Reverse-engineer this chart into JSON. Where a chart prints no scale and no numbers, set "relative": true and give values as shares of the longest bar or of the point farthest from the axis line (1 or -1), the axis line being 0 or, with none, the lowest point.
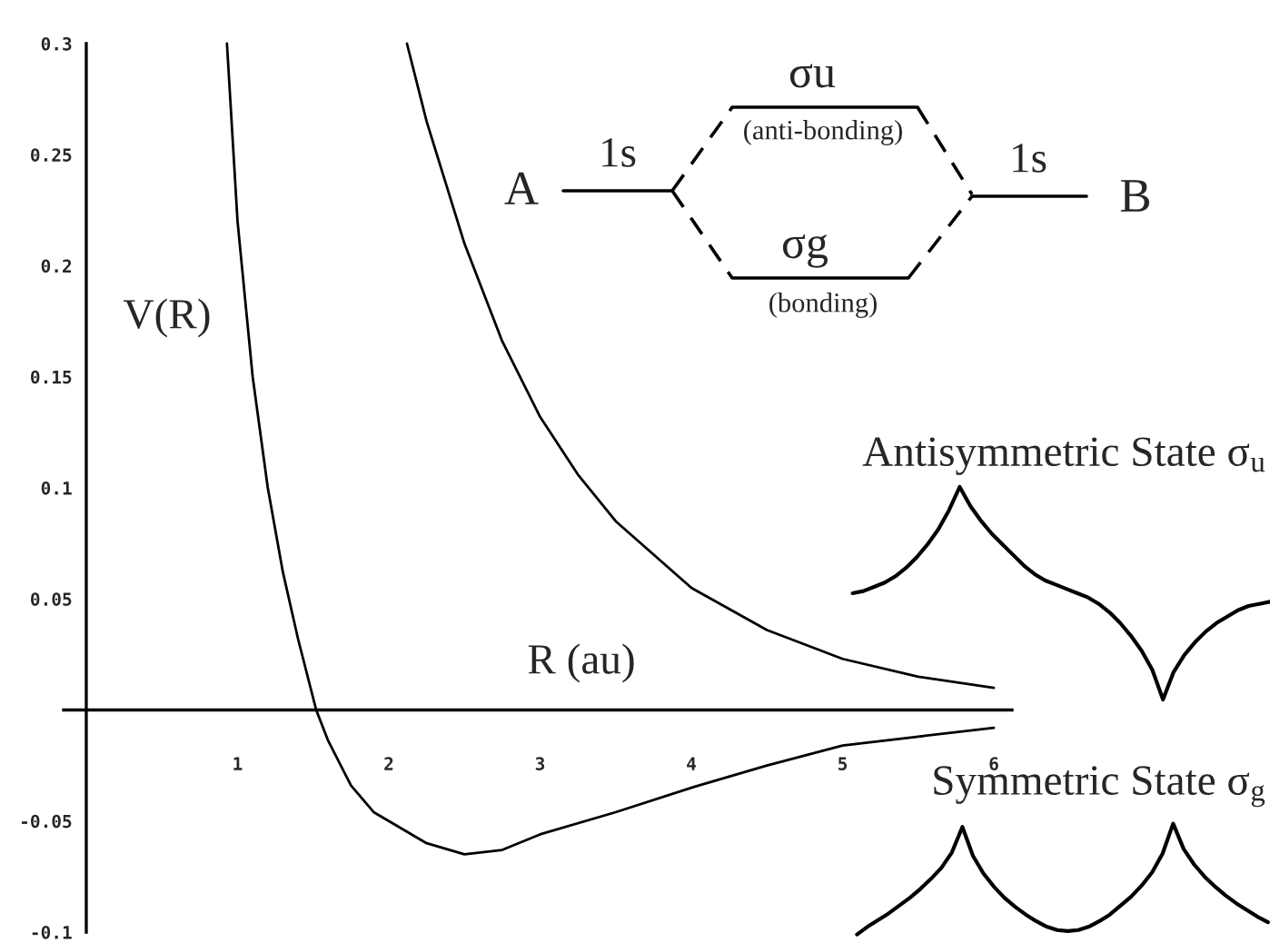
{
  "chart_data": [
    {
      "type": "line",
      "xlabel": "R (au)",
      "ylabel": "V(R)",
      "series": [
        {
          "color": "#000000",
          "x": [
            0.93,
            1.0,
            1.1,
            1.2,
            1.3,
            1.4,
            1.52,
            1.6,
            1.75,
            1.9,
            2.0,
            2.25,
            2.5,
            2.75,
            3.0,
            3.5,
            4.0,
            4.5,
            5.0,
            5.5,
            6.0
          ],
          "values": [
            0.3,
            0.22,
            0.15,
            0.1,
            0.062,
            0.032,
            0.0,
            -0.014,
            -0.034,
            -0.046,
            -0.05,
            -0.06,
            -0.065,
            -0.063,
            -0.056,
            -0.046,
            -0.035,
            -0.025,
            -0.016,
            -0.012,
            -0.008
          ]
        },
        {
          "color": "#000000",
          "x": [
            2.12,
            2.25,
            2.5,
            2.75,
            3.0,
            3.25,
            3.5,
            4.0,
            4.5,
            5.0,
            5.5,
            6.0
          ],
          "values": [
            0.3,
            0.265,
            0.21,
            0.166,
            0.132,
            0.106,
            0.085,
            0.055,
            0.036,
            0.023,
            0.015,
            0.01
          ]
        }
      ],
      "xlim": [
        -0.15,
        6.12
      ],
      "ylim": [
        -0.1,
        0.3
      ],
      "xticks": [
        1,
        2,
        3,
        4,
        5,
        6
      ],
      "yticks": [
        -0.1,
        -0.05,
        0.05,
        0.1,
        0.15,
        0.2,
        0.25,
        0.3
      ],
      "annotations": [
        "A",
        "1s",
        "σu",
        "(anti-bonding)",
        "σg",
        "(bonding)",
        "1s",
        "B"
      ]
    },
    {
      "type": "line",
      "title": "Antisymmetric State σ$_{u}$",
      "relative": true,
      "categories": [
        null,
        null,
        null,
        null,
        null,
        null,
        null,
        null,
        null,
        null,
        null,
        null,
        null,
        null,
        null,
        null,
        null,
        null,
        null,
        null,
        null,
        null,
        null,
        null,
        null,
        null,
        null,
        null,
        null,
        null,
        null,
        null,
        null,
        null,
        null,
        null,
        null,
        null,
        null,
        null
      ],
      "series": [
        {
          "color": "#000000",
          "values": [
            0.5,
            0.51,
            0.53,
            0.55,
            0.58,
            0.62,
            0.67,
            0.73,
            0.8,
            0.89,
            1.0,
            0.91,
            0.84,
            0.78,
            0.73,
            0.68,
            0.63,
            0.59,
            0.56,
            0.54,
            0.52,
            0.5,
            0.48,
            0.45,
            0.41,
            0.36,
            0.3,
            0.23,
            0.14,
            0.0,
            0.13,
            0.21,
            0.27,
            0.32,
            0.36,
            0.39,
            0.42,
            0.44,
            0.45,
            0.46
          ]
        }
      ]
    },
    {
      "type": "line",
      "title": "Symmetric State σ$_{g}$",
      "relative": true,
      "categories": [
        null,
        null,
        null,
        null,
        null,
        null,
        null,
        null,
        null,
        null,
        null,
        null,
        null,
        null,
        null,
        null,
        null,
        null,
        null,
        null,
        null,
        null,
        null,
        null,
        null,
        null,
        null,
        null,
        null,
        null,
        null,
        null,
        null,
        null,
        null,
        null,
        null,
        null,
        null,
        null
      ],
      "series": [
        {
          "color": "#000000",
          "values": [
            0.0,
            0.07,
            0.13,
            0.19,
            0.26,
            0.33,
            0.41,
            0.5,
            0.6,
            0.74,
            0.97,
            0.71,
            0.55,
            0.43,
            0.33,
            0.25,
            0.18,
            0.12,
            0.07,
            0.04,
            0.03,
            0.04,
            0.07,
            0.12,
            0.18,
            0.26,
            0.34,
            0.44,
            0.56,
            0.73,
            1.0,
            0.77,
            0.63,
            0.52,
            0.43,
            0.35,
            0.28,
            0.22,
            0.16,
            0.11
          ]
        }
      ]
    }
  ]
}
